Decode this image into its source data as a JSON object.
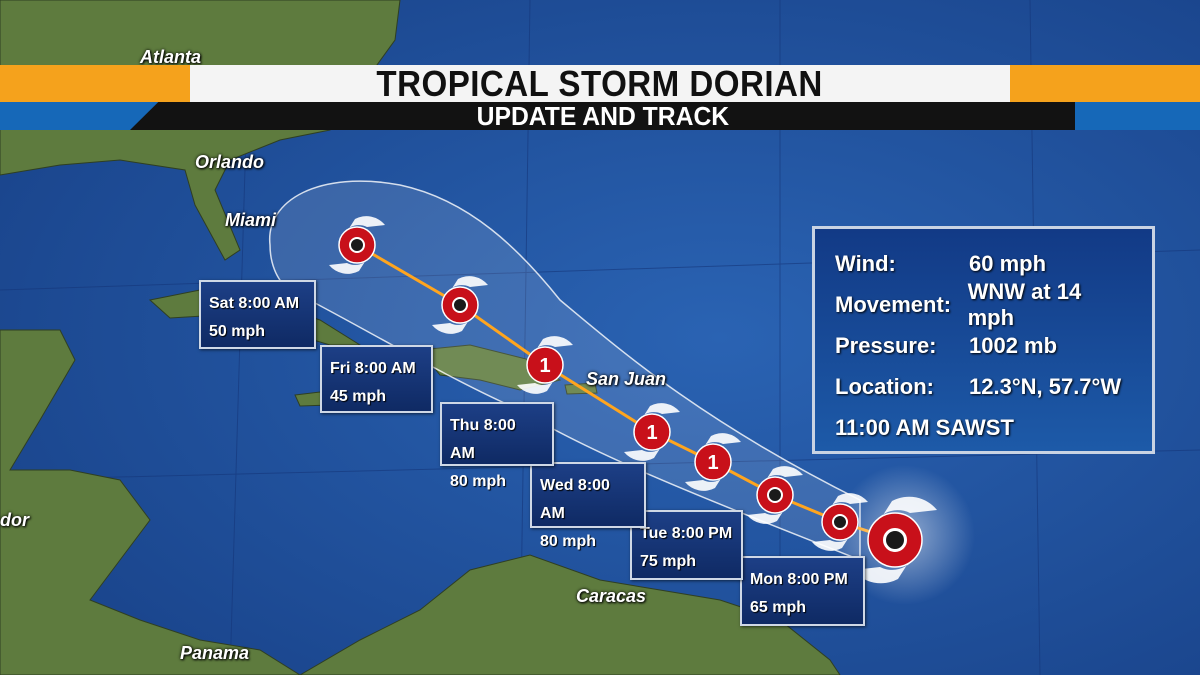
{
  "banner": {
    "title": "TROPICAL STORM DORIAN",
    "subtitle": "UPDATE AND TRACK"
  },
  "cities": [
    "Atlanta",
    "Orlando",
    "Miami",
    "San Juan",
    "Caracas",
    "Panama",
    "dor"
  ],
  "info": {
    "rows": [
      {
        "label": "Wind:",
        "value": "60 mph"
      },
      {
        "label": "Movement:",
        "value": "WNW at 14 mph"
      },
      {
        "label": "Pressure:",
        "value": "1002 mb"
      },
      {
        "label": "Location:",
        "value": "12.3°N, 57.7°W"
      }
    ],
    "time": "11:00 AM SAWST"
  },
  "forecast": [
    {
      "time": "Mon 8:00 PM",
      "wind": "65 mph",
      "category": ""
    },
    {
      "time": "Tue 8:00 PM",
      "wind": "75 mph",
      "category": ""
    },
    {
      "time": "Wed 8:00 AM",
      "wind": "80 mph",
      "category": "1"
    },
    {
      "time": "Thu 8:00 AM",
      "wind": "80 mph",
      "category": "1"
    },
    {
      "time": "Fri 8:00 AM",
      "wind": "45 mph",
      "category": "1"
    },
    {
      "time": "Sat 8:00 AM",
      "wind": "50 mph",
      "category": ""
    }
  ],
  "colors": {
    "ocean": "#1f4f9a",
    "land": "#5d7a3c",
    "storm": "#c8101a",
    "banner_orange": "#f5a21c",
    "banner_blue": "#1668b8"
  },
  "icons": {
    "storm": "tropical-storm-icon",
    "hurricane": "hurricane-icon"
  }
}
